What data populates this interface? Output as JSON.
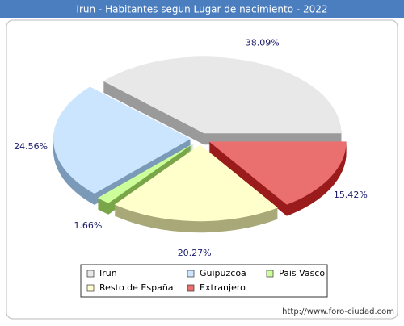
{
  "chart_data": {
    "type": "pie",
    "title": "Irun - Habitantes segun Lugar de nacimiento - 2022",
    "categories": [
      "Irun",
      "Guipuzcoa",
      "Pais Vasco",
      "Resto de España",
      "Extranjero"
    ],
    "values": [
      38.09,
      24.56,
      1.66,
      20.27,
      15.42
    ],
    "value_labels": [
      "38.09%",
      "24.56%",
      "1.66%",
      "20.27%",
      "15.42%"
    ],
    "colors": [
      "#e8e8e8",
      "#cce5ff",
      "#ccff99",
      "#ffffcc",
      "#ea7070"
    ],
    "side_colors": [
      "#9a9a9a",
      "#7b9ab8",
      "#7aa64a",
      "#a8a878",
      "#9b1c1c"
    ],
    "legend": "bottom"
  },
  "footer": "http://www.foro-ciudad.com"
}
